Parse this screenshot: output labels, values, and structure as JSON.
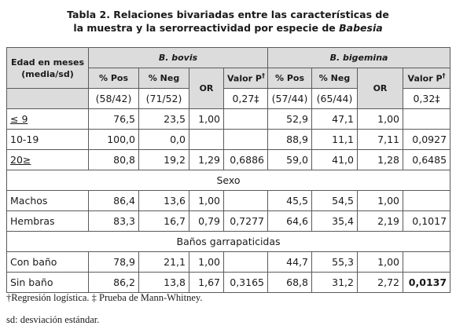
{
  "title": {
    "line1": "Tabla 2. Relaciones bivariadas entre las características de",
    "line2_prefix": "la muestra y la serorreactividad por especie de ",
    "line2_italic": "Babesia"
  },
  "table": {
    "group_header": "Edad en meses (media/sd)",
    "species": [
      "B. bovis",
      "B. bigemina"
    ],
    "col_pos": "% Pos",
    "col_neg": "% Neg",
    "col_or": "OR",
    "col_p": "Valor P",
    "p_mark": "†",
    "bovis_counts": {
      "pos": "(58/42)",
      "neg": "(71/52)",
      "p": "0,27‡"
    },
    "bigemina_counts": {
      "pos": "(57/44)",
      "neg": "(65/44)",
      "p": "0,32‡"
    },
    "rows": [
      {
        "label": "≤ 9",
        "b_pos": "76,5",
        "b_neg": "23,5",
        "b_or": "1,00",
        "b_p": "",
        "g_pos": "52,9",
        "g_neg": "47,1",
        "g_or": "1,00",
        "g_p": ""
      },
      {
        "label": "10-19",
        "b_pos": "100,0",
        "b_neg": "0,0",
        "b_or": "",
        "b_p": "",
        "g_pos": "88,9",
        "g_neg": "11,1",
        "g_or": "7,11",
        "g_p": "0,0927"
      },
      {
        "label": "20≥",
        "b_pos": "80,8",
        "b_neg": "19,2",
        "b_or": "1,29",
        "b_p": "0,6886",
        "g_pos": "59,0",
        "g_neg": "41,0",
        "g_or": "1,28",
        "g_p": "0,6485"
      }
    ],
    "section_sexo": "Sexo",
    "rows_sexo": [
      {
        "label": "Machos",
        "b_pos": "86,4",
        "b_neg": "13,6",
        "b_or": "1,00",
        "b_p": "",
        "g_pos": "45,5",
        "g_neg": "54,5",
        "g_or": "1,00",
        "g_p": ""
      },
      {
        "label": "Hembras",
        "b_pos": "83,3",
        "b_neg": "16,7",
        "b_or": "0,79",
        "b_p": "0,7277",
        "g_pos": "64,6",
        "g_neg": "35,4",
        "g_or": "2,19",
        "g_p": "0,1017"
      }
    ],
    "section_banos": "Baños garrapaticidas",
    "rows_banos": [
      {
        "label": "Con baño",
        "b_pos": "78,9",
        "b_neg": "21,1",
        "b_or": "1,00",
        "b_p": "",
        "g_pos": "44,7",
        "g_neg": "55,3",
        "g_or": "1,00",
        "g_p": ""
      },
      {
        "label": "Sin baño",
        "b_pos": "86,2",
        "b_neg": "13,8",
        "b_or": "1,67",
        "b_p": "0,3165",
        "g_pos": "68,8",
        "g_neg": "31,2",
        "g_or": "2,72",
        "g_p": "0,0137"
      }
    ]
  },
  "footnotes": {
    "line1": "†Regresión logística. ‡ Prueba de Mann-Whitney.",
    "line2": "sd: desviación estándar."
  }
}
